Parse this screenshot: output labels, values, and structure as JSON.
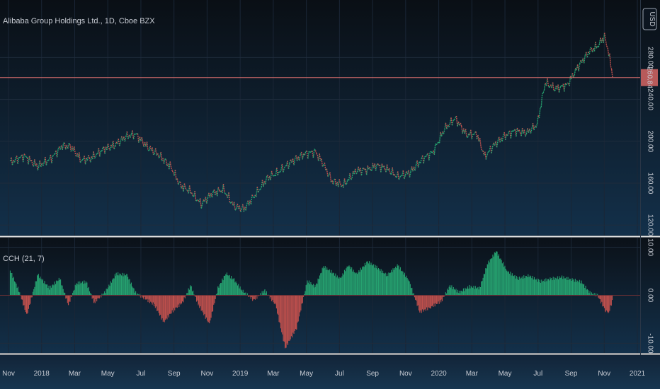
{
  "header": {
    "symbol_title": "Alibaba Group Holdings Ltd., 1D, Cboe BZX",
    "currency_button": "USD"
  },
  "indicator": {
    "label": "CCH (21, 7)"
  },
  "colors": {
    "up": "#26a270",
    "down": "#c0504d",
    "price_line": "#d46b6b",
    "price_tag_bg": "#b85a5a",
    "background_top": "#0b1118",
    "background_bottom": "#13304a",
    "separator": "#e8e8e8"
  },
  "chart_data": [
    {
      "type": "line",
      "title": "Alibaba Group Holdings Ltd., 1D, Cboe BZX",
      "x_unit": "date",
      "ylim": [
        110,
        335
      ],
      "y_ticks": [
        "120.00",
        "160.00",
        "200.00",
        "240.00",
        "280.00"
      ],
      "last_price_label": "260.84",
      "last_price": 260.84,
      "x_labels": [
        "Nov",
        "2018",
        "Mar",
        "May",
        "Jul",
        "Sep",
        "Nov",
        "2019",
        "Mar",
        "May",
        "Jul",
        "Sep",
        "Nov",
        "2020",
        "Mar",
        "May",
        "Jul",
        "Sep",
        "Nov",
        "2021"
      ],
      "series": [
        {
          "x": [
            "2017-10-20",
            "2017-11-15",
            "2017-12-10",
            "2018-01-05",
            "2018-01-25",
            "2018-02-10",
            "2018-03-01",
            "2018-03-20",
            "2018-04-10",
            "2018-05-01",
            "2018-05-25",
            "2018-06-10",
            "2018-07-01",
            "2018-07-25",
            "2018-08-15",
            "2018-09-01",
            "2018-09-20",
            "2018-10-10",
            "2018-10-30",
            "2018-11-20",
            "2018-12-10",
            "2018-12-28",
            "2019-01-20",
            "2019-02-10",
            "2019-03-01",
            "2019-03-25",
            "2019-04-20",
            "2019-05-10",
            "2019-05-25",
            "2019-06-10",
            "2019-07-01",
            "2019-07-25",
            "2019-08-15",
            "2019-09-01",
            "2019-09-20",
            "2019-10-10",
            "2019-11-01",
            "2019-11-25",
            "2019-12-15",
            "2020-01-05",
            "2020-01-25",
            "2020-02-15",
            "2020-03-05",
            "2020-03-20",
            "2020-04-05",
            "2020-04-25",
            "2020-05-15",
            "2020-06-05",
            "2020-06-25",
            "2020-07-10",
            "2020-07-30",
            "2020-08-20",
            "2020-09-10",
            "2020-09-30",
            "2020-10-15",
            "2020-10-28",
            "2020-11-05",
            "2020-11-12"
          ],
          "y": [
            180,
            186,
            176,
            184,
            196,
            195,
            182,
            184,
            192,
            196,
            205,
            207,
            195,
            186,
            175,
            158,
            152,
            140,
            150,
            154,
            138,
            135,
            150,
            165,
            170,
            180,
            188,
            190,
            178,
            162,
            158,
            172,
            173,
            177,
            174,
            166,
            170,
            183,
            190,
            212,
            222,
            206,
            207,
            185,
            196,
            205,
            210,
            208,
            216,
            256,
            250,
            254,
            272,
            286,
            291,
            300,
            285,
            260.84
          ]
        }
      ]
    },
    {
      "type": "bar",
      "title": "CCH (21, 7)",
      "x_unit": "date",
      "ylim": [
        -12,
        12
      ],
      "y_ticks": [
        "10.00",
        "0.00",
        "-10.00"
      ],
      "series": [
        {
          "x": [
            "2017-10-20",
            "2017-11-05",
            "2017-11-20",
            "2017-12-10",
            "2018-01-01",
            "2018-01-20",
            "2018-02-05",
            "2018-02-20",
            "2018-03-10",
            "2018-03-25",
            "2018-04-15",
            "2018-05-05",
            "2018-05-25",
            "2018-06-10",
            "2018-06-25",
            "2018-07-15",
            "2018-08-01",
            "2018-08-20",
            "2018-09-05",
            "2018-09-20",
            "2018-10-05",
            "2018-10-25",
            "2018-11-10",
            "2018-11-25",
            "2018-12-10",
            "2018-12-25",
            "2019-01-15",
            "2019-02-05",
            "2019-02-25",
            "2019-03-15",
            "2019-04-05",
            "2019-04-25",
            "2019-05-10",
            "2019-05-25",
            "2019-06-10",
            "2019-06-25",
            "2019-07-10",
            "2019-07-25",
            "2019-08-15",
            "2019-09-01",
            "2019-09-20",
            "2019-10-10",
            "2019-10-30",
            "2019-11-20",
            "2019-12-10",
            "2019-12-30",
            "2020-01-15",
            "2020-02-01",
            "2020-02-20",
            "2020-03-10",
            "2020-03-25",
            "2020-04-10",
            "2020-04-30",
            "2020-05-20",
            "2020-06-10",
            "2020-06-30",
            "2020-07-20",
            "2020-08-10",
            "2020-08-30",
            "2020-09-15",
            "2020-10-01",
            "2020-10-15",
            "2020-10-30",
            "2020-11-05",
            "2020-11-12"
          ],
          "values": [
            5.2,
            1.0,
            -4.2,
            4.3,
            1.5,
            3.5,
            -2.0,
            2.5,
            2.8,
            -1.5,
            0.8,
            4.5,
            4.2,
            0.5,
            -0.5,
            -2.0,
            -5.6,
            -3.0,
            -1.5,
            2.0,
            -2.0,
            -6.0,
            1.5,
            4.6,
            3.2,
            1.0,
            -1.0,
            1.0,
            -2.0,
            -11.0,
            -6.8,
            3.0,
            1.8,
            6.0,
            4.8,
            3.4,
            6.3,
            4.4,
            7.0,
            5.8,
            4.2,
            6.2,
            3.3,
            -3.5,
            -2.5,
            -1.2,
            2.0,
            0.6,
            1.8,
            1.5,
            6.6,
            9.2,
            5.1,
            3.5,
            4.1,
            2.9,
            3.4,
            3.8,
            3.2,
            2.8,
            0.5,
            0.0,
            -3.2,
            -3.6,
            -1.0
          ]
        }
      ]
    }
  ]
}
